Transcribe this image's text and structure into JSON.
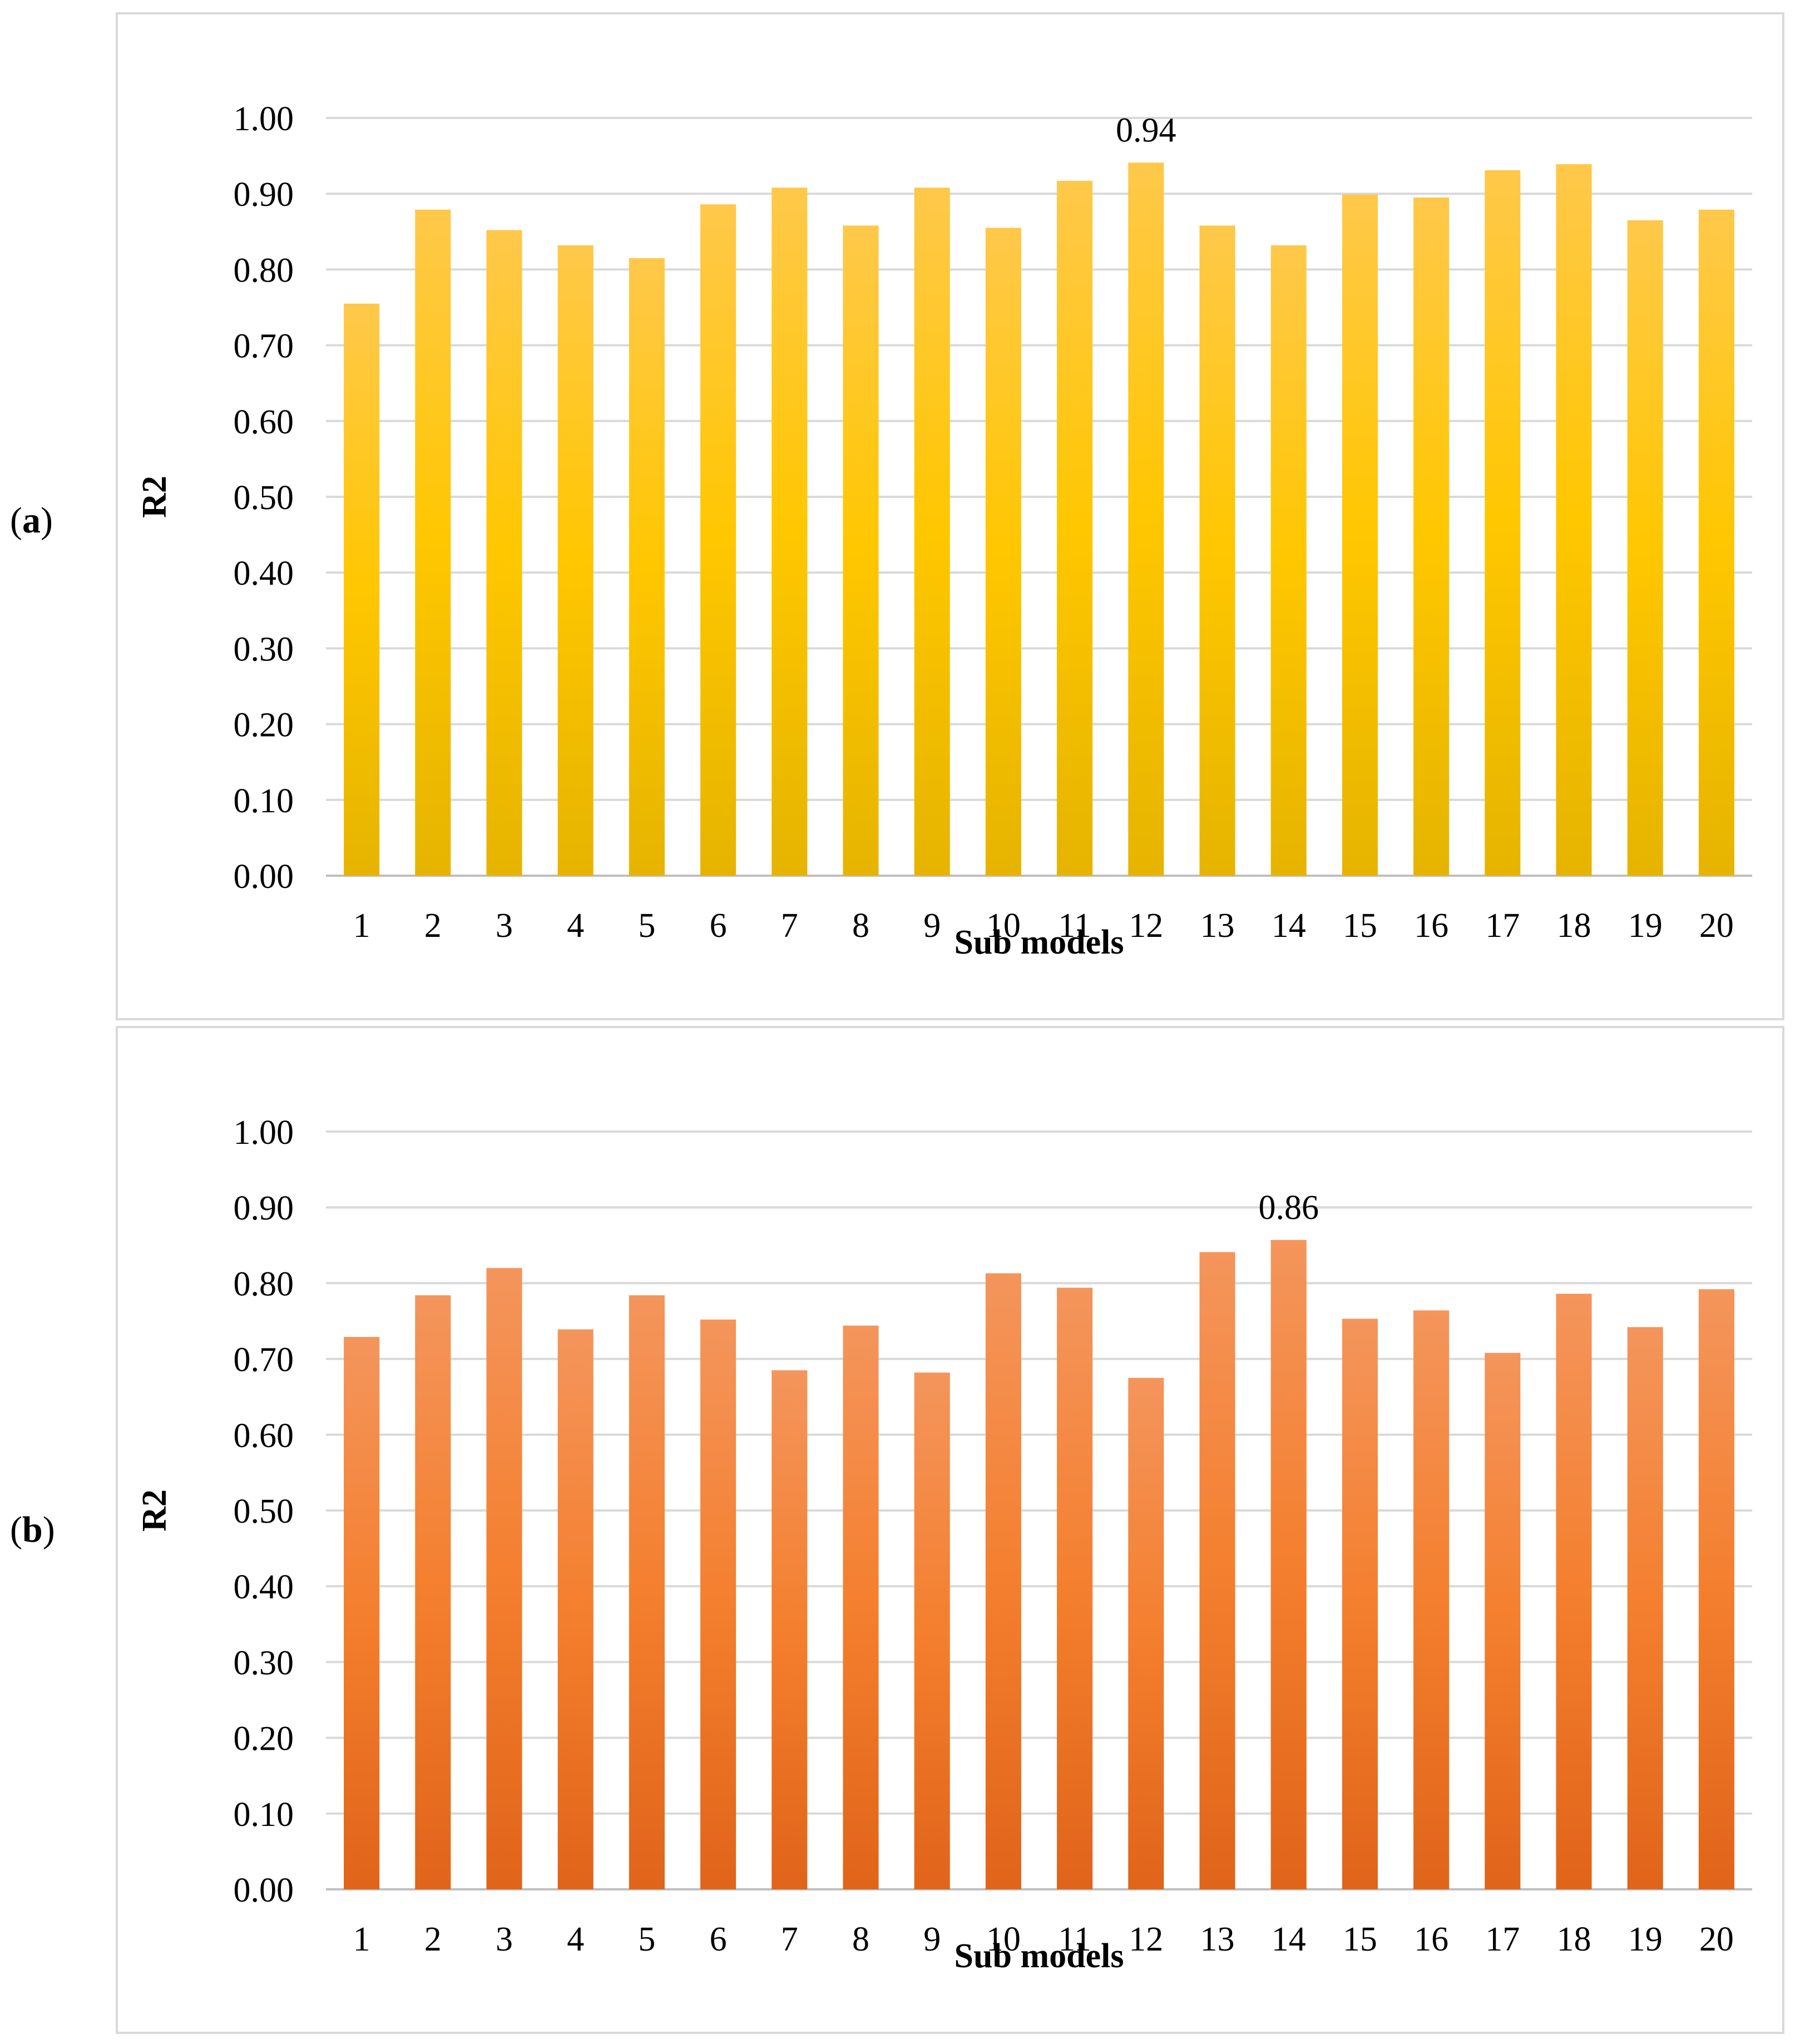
{
  "panels": [
    {
      "id": "a",
      "letter": "a"
    },
    {
      "id": "b",
      "letter": "b"
    }
  ],
  "chart_data": [
    {
      "type": "bar",
      "panel": "a",
      "categories": [
        "1",
        "2",
        "3",
        "4",
        "5",
        "6",
        "7",
        "8",
        "9",
        "10",
        "11",
        "12",
        "13",
        "14",
        "15",
        "16",
        "17",
        "18",
        "19",
        "20"
      ],
      "values": [
        0.755,
        0.879,
        0.852,
        0.832,
        0.815,
        0.886,
        0.908,
        0.858,
        0.908,
        0.855,
        0.917,
        0.941,
        0.858,
        0.832,
        0.899,
        0.895,
        0.931,
        0.939,
        0.865,
        0.879
      ],
      "data_labels": [
        {
          "category": "12",
          "text": "0.94"
        }
      ],
      "xlabel": "Sub models",
      "ylabel": "R2",
      "ylim": [
        0,
        1.0
      ],
      "yticks": [
        "0.00",
        "0.10",
        "0.20",
        "0.30",
        "0.40",
        "0.50",
        "0.60",
        "0.70",
        "0.80",
        "0.90",
        "1.00"
      ],
      "grid": true,
      "colors": {
        "top": "#ffc84a",
        "middle": "#ffc700",
        "bottom": "#e6b400"
      }
    },
    {
      "type": "bar",
      "panel": "b",
      "categories": [
        "1",
        "2",
        "3",
        "4",
        "5",
        "6",
        "7",
        "8",
        "9",
        "10",
        "11",
        "12",
        "13",
        "14",
        "15",
        "16",
        "17",
        "18",
        "19",
        "20"
      ],
      "values": [
        0.729,
        0.784,
        0.82,
        0.739,
        0.784,
        0.752,
        0.685,
        0.744,
        0.682,
        0.813,
        0.794,
        0.675,
        0.841,
        0.857,
        0.753,
        0.764,
        0.708,
        0.786,
        0.742,
        0.792
      ],
      "data_labels": [
        {
          "category": "14",
          "text": "0.86"
        }
      ],
      "xlabel": "Sub models",
      "ylabel": "R2",
      "ylim": [
        0,
        1.0
      ],
      "yticks": [
        "0.00",
        "0.10",
        "0.20",
        "0.30",
        "0.40",
        "0.50",
        "0.60",
        "0.70",
        "0.80",
        "0.90",
        "1.00"
      ],
      "grid": true,
      "colors": {
        "top": "#f4955c",
        "middle": "#f47f2e",
        "bottom": "#e0641a"
      }
    }
  ]
}
